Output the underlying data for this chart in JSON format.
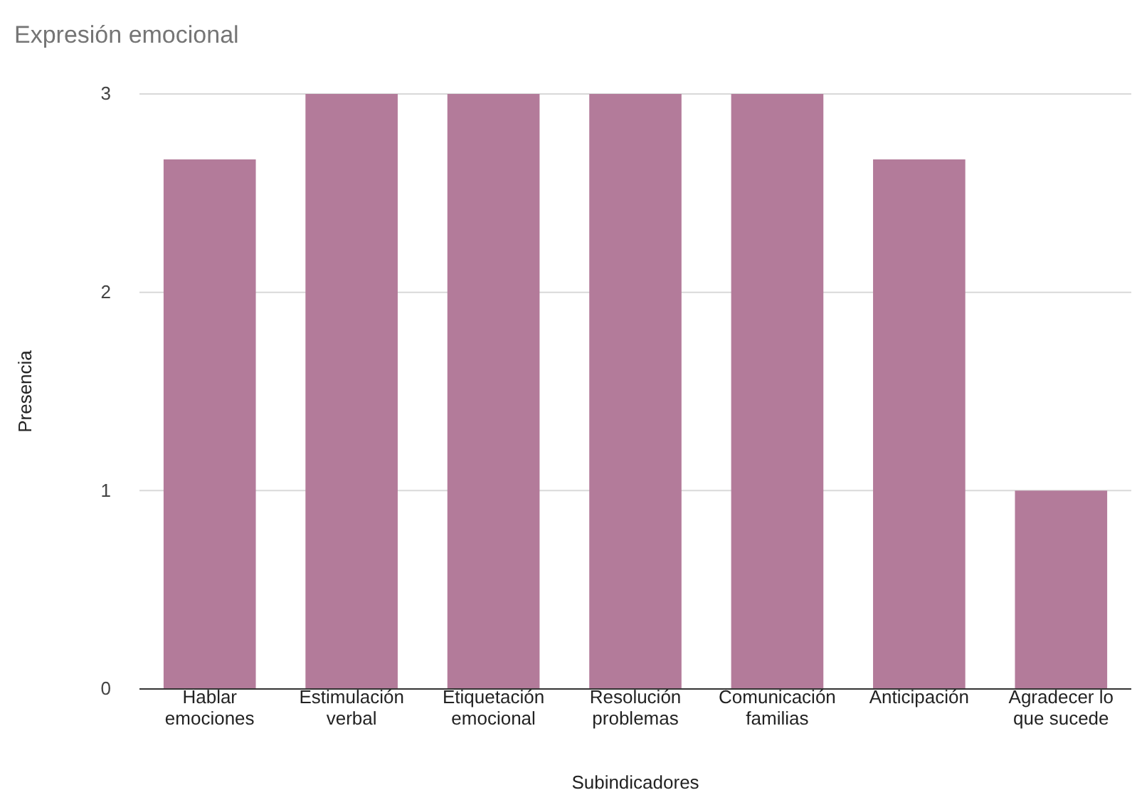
{
  "chart_data": {
    "type": "bar",
    "title": "Expresión emocional",
    "xlabel": "Subindicadores",
    "ylabel": "Presencia",
    "categories": [
      "Hablar emociones",
      "Estimulación verbal",
      "Etiquetación emocional",
      "Resolución problemas",
      "Comunicación familias",
      "Anticipación",
      "Agradecer lo que sucede"
    ],
    "values": [
      2.67,
      3,
      3,
      3,
      3,
      2.67,
      1
    ],
    "color": "#b37b9a",
    "ylim": [
      0,
      3
    ],
    "yticks": [
      0,
      1,
      2,
      3
    ],
    "grid": "y"
  }
}
